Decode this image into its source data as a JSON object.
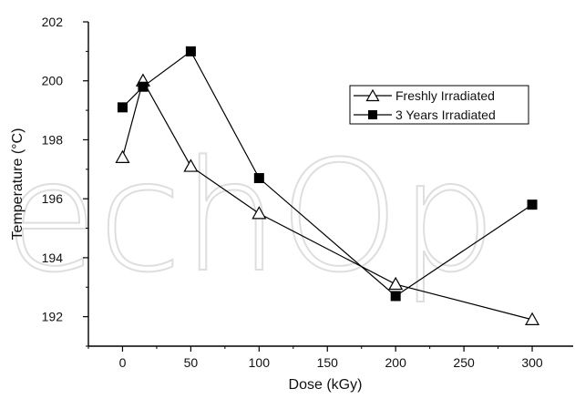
{
  "chart_data": {
    "type": "line",
    "xlabel": "Dose (kGy)",
    "ylabel": "Temperature (°C)",
    "xlim": [
      -25,
      330
    ],
    "ylim": [
      191,
      202
    ],
    "x_ticks": [
      0,
      50,
      100,
      150,
      200,
      250,
      300
    ],
    "y_ticks": [
      192,
      194,
      196,
      198,
      200,
      202
    ],
    "x_tick_labels": [
      "0",
      "50",
      "100",
      "150",
      "200",
      "250",
      "300"
    ],
    "y_tick_labels": [
      "192",
      "194",
      "196",
      "198",
      "200",
      "202"
    ],
    "legend_position": "upper-right",
    "grid": false,
    "series": [
      {
        "name": "Freshly Irradiated",
        "marker": "open-triangle",
        "color": "#000000",
        "points": [
          {
            "x": 0,
            "y": 197.4
          },
          {
            "x": 15,
            "y": 200.0
          },
          {
            "x": 50,
            "y": 197.1
          },
          {
            "x": 100,
            "y": 195.5
          },
          {
            "x": 200,
            "y": 193.1
          },
          {
            "x": 300,
            "y": 191.9
          }
        ]
      },
      {
        "name": "3 Years Irradiated",
        "marker": "filled-square",
        "color": "#000000",
        "points": [
          {
            "x": 0,
            "y": 199.1
          },
          {
            "x": 15,
            "y": 199.8
          },
          {
            "x": 50,
            "y": 201.0
          },
          {
            "x": 100,
            "y": 196.7
          },
          {
            "x": 200,
            "y": 192.7
          },
          {
            "x": 300,
            "y": 195.8
          }
        ]
      }
    ]
  }
}
